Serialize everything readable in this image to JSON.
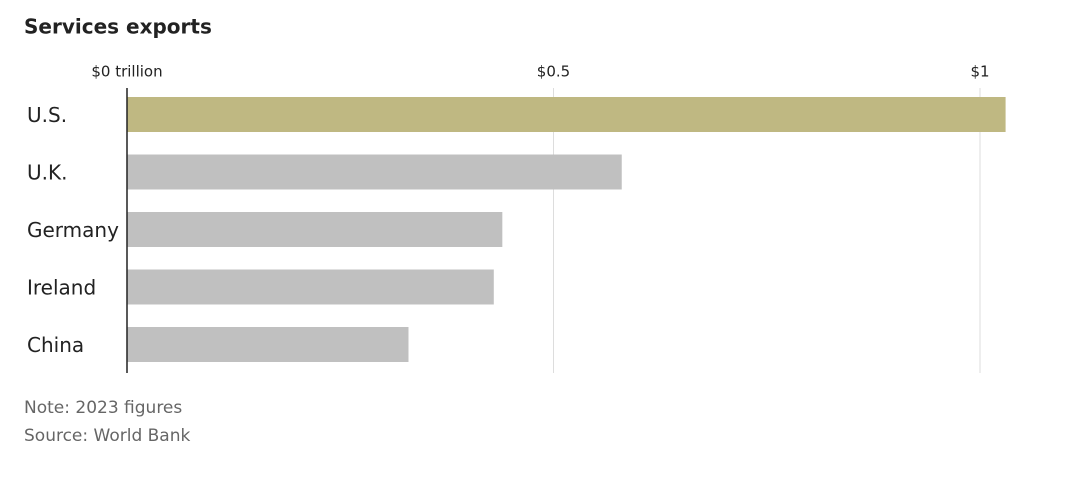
{
  "chart_data": {
    "type": "bar",
    "orientation": "horizontal",
    "title": "Services exports",
    "categories": [
      "U.S.",
      "U.K.",
      "Germany",
      "Ireland",
      "China"
    ],
    "values": [
      1.03,
      0.58,
      0.44,
      0.43,
      0.33
    ],
    "colors": [
      "#bfb882",
      "#c0c0c0",
      "#c0c0c0",
      "#c0c0c0",
      "#c0c0c0"
    ],
    "xlim": [
      0,
      1.05
    ],
    "xticks": [
      {
        "value": 0,
        "label": "$0 trillion"
      },
      {
        "value": 0.5,
        "label": "$0.5"
      },
      {
        "value": 1,
        "label": "$1"
      }
    ],
    "grid": true,
    "note": "Note: 2023 figures",
    "source": "Source: World Bank"
  }
}
